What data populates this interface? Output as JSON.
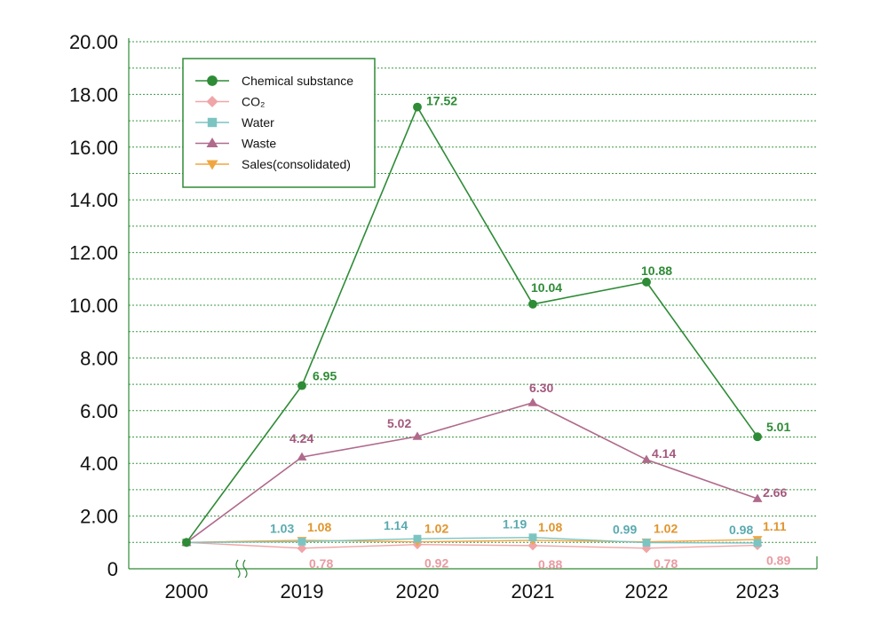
{
  "chart_data": {
    "type": "line",
    "categories": [
      "2000",
      "2019",
      "2020",
      "2021",
      "2022",
      "2023"
    ],
    "ylim": [
      0,
      20
    ],
    "yticks": [
      0,
      2,
      4,
      6,
      8,
      10,
      12,
      14,
      16,
      18,
      20
    ],
    "ytick_labels": [
      "0",
      "2.00",
      "4.00",
      "6.00",
      "8.00",
      "10.00",
      "12.00",
      "14.00",
      "16.00",
      "18.00",
      "20.00"
    ],
    "grid": true,
    "axis_break": "between 2000 and 2019",
    "legend_position": "top-left",
    "series": [
      {
        "name": "Chemical substance",
        "marker": "circle",
        "color": "#2e8b36",
        "label_color": "#2e8b36",
        "values": [
          1.0,
          6.95,
          17.52,
          10.04,
          10.88,
          5.01
        ],
        "labels": [
          "",
          "6.95",
          "17.52",
          "10.04",
          "10.88",
          "5.01"
        ]
      },
      {
        "name": "CO₂",
        "marker": "diamond",
        "color": "#f0a5a8",
        "label_color": "#e99aa0",
        "values": [
          1.0,
          0.78,
          0.92,
          0.88,
          0.78,
          0.89
        ],
        "labels": [
          "",
          "0.78",
          "0.92",
          "0.88",
          "0.78",
          "0.89"
        ]
      },
      {
        "name": "Water",
        "marker": "square",
        "color": "#7cc4c2",
        "label_color": "#5aaab0",
        "values": [
          1.0,
          1.03,
          1.14,
          1.19,
          0.99,
          0.98
        ],
        "labels": [
          "",
          "1.03",
          "1.14",
          "1.19",
          "0.99",
          "0.98"
        ]
      },
      {
        "name": "Waste",
        "marker": "triangle-up",
        "color": "#b06a8c",
        "label_color": "#a4587e",
        "values": [
          1.0,
          4.24,
          5.02,
          6.3,
          4.14,
          2.66
        ],
        "labels": [
          "",
          "4.24",
          "5.02",
          "6.30",
          "4.14",
          "2.66"
        ]
      },
      {
        "name": "Sales(consolidated)",
        "marker": "triangle-down",
        "color": "#f0a640",
        "label_color": "#e0952e",
        "values": [
          1.0,
          1.08,
          1.02,
          1.08,
          1.02,
          1.11
        ],
        "labels": [
          "",
          "1.08",
          "1.02",
          "1.08",
          "1.02",
          "1.11"
        ]
      }
    ]
  }
}
